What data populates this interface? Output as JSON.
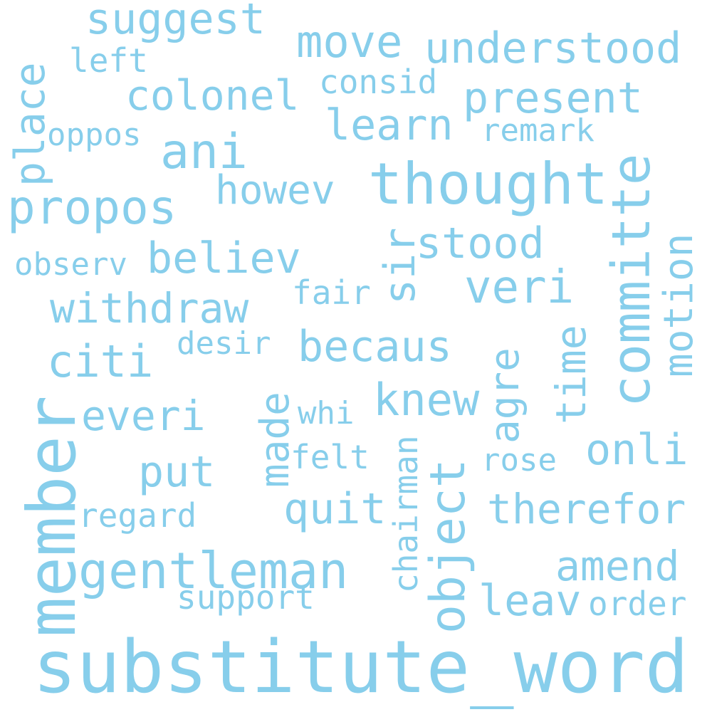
{
  "word_color": "#87CEEB",
  "background_color": "#FFFFFF",
  "words": [
    {
      "id": "substitute-word",
      "text": "substitute_word"
    },
    {
      "id": "member",
      "text": "member"
    },
    {
      "id": "thought",
      "text": "thought"
    },
    {
      "id": "gentleman",
      "text": "gentleman"
    },
    {
      "id": "committe",
      "text": "committe"
    },
    {
      "id": "propos",
      "text": "propos"
    },
    {
      "id": "object",
      "text": "object"
    },
    {
      "id": "understood",
      "text": "understood"
    },
    {
      "id": "suggest",
      "text": "suggest"
    },
    {
      "id": "move",
      "text": "move"
    },
    {
      "id": "colonel",
      "text": "colonel"
    },
    {
      "id": "present",
      "text": "present"
    },
    {
      "id": "ani",
      "text": "ani"
    },
    {
      "id": "place",
      "text": "place"
    },
    {
      "id": "learn",
      "text": "learn"
    },
    {
      "id": "believ",
      "text": "believ"
    },
    {
      "id": "withdraw",
      "text": "withdraw"
    },
    {
      "id": "howev",
      "text": "howev"
    },
    {
      "id": "stood",
      "text": "stood"
    },
    {
      "id": "veri",
      "text": "veri"
    },
    {
      "id": "motion",
      "text": "motion"
    },
    {
      "id": "becaus",
      "text": "becaus"
    },
    {
      "id": "citi",
      "text": "citi"
    },
    {
      "id": "knew",
      "text": "knew"
    },
    {
      "id": "time",
      "text": "time"
    },
    {
      "id": "everi",
      "text": "everi"
    },
    {
      "id": "made",
      "text": "made"
    },
    {
      "id": "sir",
      "text": "sir"
    },
    {
      "id": "put",
      "text": "put"
    },
    {
      "id": "quit",
      "text": "quit"
    },
    {
      "id": "therefor",
      "text": "therefor"
    },
    {
      "id": "amend",
      "text": "amend"
    },
    {
      "id": "leav",
      "text": "leav"
    },
    {
      "id": "onli",
      "text": "onli"
    },
    {
      "id": "agre",
      "text": "agre"
    },
    {
      "id": "left",
      "text": "left"
    },
    {
      "id": "consid",
      "text": "consid"
    },
    {
      "id": "remark",
      "text": "remark"
    },
    {
      "id": "oppos",
      "text": "oppos"
    },
    {
      "id": "observ",
      "text": "observ"
    },
    {
      "id": "fair",
      "text": "fair"
    },
    {
      "id": "desir",
      "text": "desir"
    },
    {
      "id": "whi",
      "text": "whi"
    },
    {
      "id": "felt",
      "text": "felt"
    },
    {
      "id": "rose",
      "text": "rose"
    },
    {
      "id": "chairman",
      "text": "chairman"
    },
    {
      "id": "regard",
      "text": "regard"
    },
    {
      "id": "support",
      "text": "support"
    },
    {
      "id": "order",
      "text": "order"
    }
  ]
}
